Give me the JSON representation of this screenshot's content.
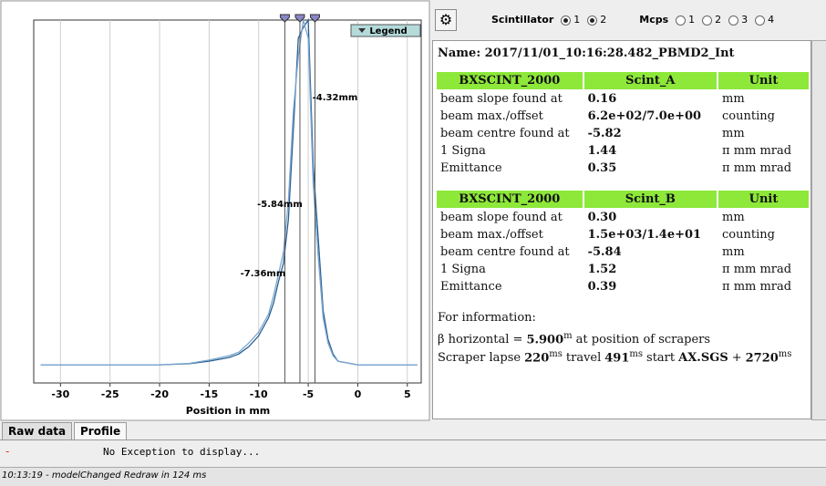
{
  "chart_data": {
    "type": "line",
    "xlabel": "Position in mm",
    "legend_button": "Legend",
    "xlim": [
      -32.7,
      6.4
    ],
    "ylim": [
      0,
      100
    ],
    "xticks": [
      -30,
      -25,
      -20,
      -15,
      -10,
      -5,
      0,
      5
    ],
    "grid": true,
    "x": [
      -32,
      -28,
      -24,
      -20,
      -17,
      -15,
      -13,
      -12,
      -11,
      -10,
      -9,
      -8.5,
      -8,
      -7.5,
      -7,
      -6.5,
      -6,
      -5.5,
      -5,
      -4.5,
      -4,
      -3.5,
      -3,
      -2.5,
      -2,
      -1,
      0,
      2,
      4,
      6
    ],
    "series": [
      {
        "color": "#2b5f8f",
        "values": [
          5,
          5,
          5,
          5,
          5.3,
          6,
          7,
          8,
          10,
          13,
          18,
          22,
          28,
          33,
          45,
          70,
          95,
          98,
          100,
          60,
          40,
          20,
          12,
          8,
          6,
          5.5,
          5,
          5,
          5,
          5
        ]
      },
      {
        "color": "#7aa6d0",
        "values": [
          5,
          5,
          5,
          5,
          5.4,
          6.3,
          7.5,
          8.5,
          11,
          14,
          19,
          24,
          30,
          36,
          50,
          75,
          90,
          100,
          95,
          55,
          35,
          18,
          11,
          7.5,
          6,
          5.5,
          5,
          5,
          5,
          5
        ]
      }
    ],
    "markers": [
      {
        "value": -7.36,
        "label": "-7.36mm"
      },
      {
        "value": -5.84,
        "label": "-5.84mm"
      },
      {
        "value": -4.32,
        "label": "-4.32mm"
      }
    ]
  },
  "toolbar": {
    "scintillator": {
      "label": "Scintillator",
      "options": [
        {
          "label": "1",
          "checked": true
        },
        {
          "label": "2",
          "checked": true
        }
      ]
    },
    "mcps": {
      "label": "Mcps",
      "options": [
        {
          "label": "1",
          "checked": false
        },
        {
          "label": "2",
          "checked": false
        },
        {
          "label": "3",
          "checked": false
        },
        {
          "label": "4",
          "checked": false
        }
      ]
    }
  },
  "report": {
    "name": "Name: 2017/11/01_10:16:28.482_PBMD2_Int",
    "tables": [
      {
        "header": [
          "BXSCINT_2000",
          "Scint_A",
          "Unit"
        ],
        "rows": [
          [
            "beam slope found at",
            "0.16",
            "mm"
          ],
          [
            "beam max./offset",
            "6.2e+02/7.0e+00",
            "counting"
          ],
          [
            "beam centre found at",
            "-5.82",
            "mm"
          ],
          [
            "1 Signa",
            "1.44",
            "π mm mrad"
          ],
          [
            "Emittance",
            "0.35",
            "π mm mrad"
          ]
        ]
      },
      {
        "header": [
          "BXSCINT_2000",
          "Scint_B",
          "Unit"
        ],
        "rows": [
          [
            "beam slope found at",
            "0.30",
            "mm"
          ],
          [
            "beam max./offset",
            "1.5e+03/1.4e+01",
            "counting"
          ],
          [
            "beam centre found at",
            "-5.84",
            "mm"
          ],
          [
            "1 Signa",
            "1.52",
            "π mm mrad"
          ],
          [
            "Emittance",
            "0.39",
            "π mm mrad"
          ]
        ]
      }
    ],
    "info_title": "For information:",
    "beta": {
      "prefix": "β horizontal =",
      "value": "5.900",
      "unit": "m",
      "suffix": "at position of scrapers"
    },
    "scraper": {
      "lapse_label": "Scraper lapse",
      "lapse": "220",
      "lapse_unit": "ms",
      "travel_label": "travel",
      "travel": "491",
      "travel_unit": "ms",
      "start_label": "start",
      "start_name": "AX.SGS",
      "plus": "+",
      "start": "2720",
      "start_unit": "ms"
    }
  },
  "tabs": [
    {
      "label": "Raw data",
      "selected": false
    },
    {
      "label": "Profile",
      "selected": true
    }
  ],
  "status": {
    "marker": "-",
    "exception": "No Exception to display...",
    "log": "10:13:19 - modelChanged Redraw in 124 ms"
  }
}
